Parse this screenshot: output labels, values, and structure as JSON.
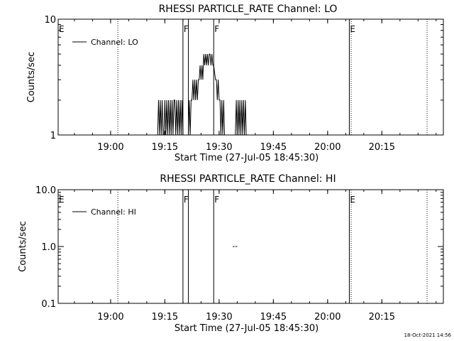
{
  "timestamp": "18-Oct-2021 14:56",
  "chart_data": [
    {
      "type": "line",
      "title": "RHESSI PARTICLE_RATE Channel: LO",
      "xlabel": "Start Time (27-Jul-05 18:45:30)",
      "ylabel": "Counts/sec",
      "yscale": "log",
      "xlim": [
        "18:45:30",
        "20:32:00"
      ],
      "ylim": [
        1,
        10
      ],
      "x_tick_labels": [
        "19:00",
        "19:15",
        "19:30",
        "19:45",
        "20:00",
        "20:15"
      ],
      "y_tick_labels": [
        "1",
        "10"
      ],
      "legend": {
        "placement": "top-left",
        "entries": [
          "Channel: LO"
        ]
      },
      "markers": [
        {
          "time": "18:45:30",
          "label": "E",
          "style": "solid"
        },
        {
          "time": "19:02:00",
          "label": "",
          "style": "dotted"
        },
        {
          "time": "19:20:00",
          "label": "F",
          "style": "solid"
        },
        {
          "time": "19:21:30",
          "label": "",
          "style": "solid"
        },
        {
          "time": "19:28:30",
          "label": "F",
          "style": "solid"
        },
        {
          "time": "20:06:00",
          "label": "E",
          "style": "solid"
        },
        {
          "time": "20:06:30",
          "label": "",
          "style": "dotted"
        },
        {
          "time": "20:27:30",
          "label": "",
          "style": "dotted"
        }
      ],
      "series": [
        {
          "name": "Channel: LO",
          "x": [
            "19:13:00",
            "19:13:15",
            "19:13:30",
            "19:13:45",
            "19:14:00",
            "19:14:15",
            "19:14:30",
            "19:14:45",
            "19:15:00",
            "19:15:15",
            "19:15:30",
            "19:15:45",
            "19:16:00",
            "19:16:15",
            "19:16:30",
            "19:16:45",
            "19:17:00",
            "19:17:15",
            "19:17:30",
            "19:17:45",
            "19:18:00",
            "19:18:15",
            "19:18:30",
            "19:18:45",
            "19:19:00",
            "19:19:15",
            "19:19:30",
            "19:19:45",
            "19:20:00",
            "19:21:30",
            "19:21:45",
            "19:22:00",
            "19:22:15",
            "19:22:30",
            "19:22:45",
            "19:23:00",
            "19:23:15",
            "19:23:30",
            "19:23:45",
            "19:24:00",
            "19:24:15",
            "19:24:30",
            "19:24:45",
            "19:25:00",
            "19:25:15",
            "19:25:30",
            "19:25:45",
            "19:26:00",
            "19:26:15",
            "19:26:30",
            "19:26:45",
            "19:27:00",
            "19:27:15",
            "19:27:30",
            "19:27:45",
            "19:28:00",
            "19:28:15",
            "19:28:30",
            "19:29:00",
            "19:29:15",
            "19:29:30",
            "19:29:45",
            "19:30:00",
            "19:30:15",
            "19:30:30",
            "19:30:45",
            "19:31:00",
            "19:31:15",
            "19:31:30",
            "19:31:45",
            "19:32:00",
            "19:34:30",
            "19:34:45",
            "19:35:00",
            "19:35:15",
            "19:35:30",
            "19:35:45",
            "19:36:00",
            "19:36:15",
            "19:36:30",
            "19:36:45",
            "19:37:00",
            "19:37:15",
            "19:37:30"
          ],
          "y": [
            1,
            2,
            1,
            2,
            1,
            2,
            1,
            1,
            2,
            1,
            2,
            1,
            2,
            1,
            2,
            1,
            2,
            1,
            2,
            2,
            1,
            2,
            1,
            2,
            1,
            2,
            1,
            2,
            1,
            1,
            2,
            1,
            2,
            2,
            3,
            2,
            3,
            2,
            3,
            2,
            3,
            3,
            4,
            3,
            4,
            3,
            5,
            4,
            5,
            4,
            5,
            4,
            5,
            5,
            4,
            5,
            4,
            4,
            3,
            3,
            2,
            3,
            2,
            2,
            1,
            2,
            1,
            2,
            1,
            1,
            1,
            1,
            2,
            1,
            2,
            1,
            2,
            1,
            2,
            1,
            2,
            1,
            2,
            1
          ]
        }
      ]
    },
    {
      "type": "line",
      "title": "RHESSI PARTICLE_RATE Channel: HI",
      "xlabel": "Start Time (27-Jul-05 18:45:30)",
      "ylabel": "Counts/sec",
      "yscale": "log",
      "xlim": [
        "18:45:30",
        "20:32:00"
      ],
      "ylim": [
        0.1,
        10
      ],
      "x_tick_labels": [
        "19:00",
        "19:15",
        "19:30",
        "19:45",
        "20:00",
        "20:15"
      ],
      "y_tick_labels": [
        "0.1",
        "1.0",
        "10.0"
      ],
      "legend": {
        "placement": "top-left",
        "entries": [
          "Channel: HI"
        ]
      },
      "markers": [
        {
          "time": "18:45:30",
          "label": "E",
          "style": "solid"
        },
        {
          "time": "19:02:00",
          "label": "",
          "style": "dotted"
        },
        {
          "time": "19:20:00",
          "label": "F",
          "style": "solid"
        },
        {
          "time": "19:21:30",
          "label": "",
          "style": "solid"
        },
        {
          "time": "19:28:30",
          "label": "F",
          "style": "solid"
        },
        {
          "time": "20:06:00",
          "label": "E",
          "style": "solid"
        },
        {
          "time": "20:06:30",
          "label": "",
          "style": "dotted"
        },
        {
          "time": "20:27:30",
          "label": "",
          "style": "dotted"
        }
      ],
      "series": [
        {
          "name": "Channel: HI",
          "segments": [
            {
              "x": [
                "19:33:45",
                "19:34:15"
              ],
              "y": [
                1,
                1
              ]
            },
            {
              "x": [
                "19:34:30",
                "19:35:00"
              ],
              "y": [
                1,
                1
              ]
            }
          ]
        }
      ]
    }
  ]
}
